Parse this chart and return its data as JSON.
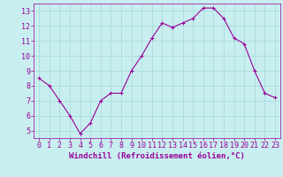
{
  "x": [
    0,
    1,
    2,
    3,
    4,
    5,
    6,
    7,
    8,
    9,
    10,
    11,
    12,
    13,
    14,
    15,
    16,
    17,
    18,
    19,
    20,
    21,
    22,
    23
  ],
  "y": [
    8.5,
    8.0,
    7.0,
    6.0,
    4.8,
    5.5,
    7.0,
    7.5,
    7.5,
    9.0,
    10.0,
    11.2,
    12.2,
    11.9,
    12.2,
    12.5,
    13.2,
    13.2,
    12.5,
    11.2,
    10.8,
    9.0,
    7.5,
    7.2
  ],
  "line_color": "#990099",
  "marker": "+",
  "marker_size": 3,
  "marker_lw": 0.8,
  "line_width": 0.8,
  "bg_color": "#c8eef0",
  "grid_color": "#aadddd",
  "xlabel": "Windchill (Refroidissement éolien,°C)",
  "xlabel_color": "#990099",
  "tick_color": "#990099",
  "xlim": [
    -0.5,
    23.5
  ],
  "ylim": [
    4.5,
    13.5
  ],
  "yticks": [
    5,
    6,
    7,
    8,
    9,
    10,
    11,
    12,
    13
  ],
  "xticks": [
    0,
    1,
    2,
    3,
    4,
    5,
    6,
    7,
    8,
    9,
    10,
    11,
    12,
    13,
    14,
    15,
    16,
    17,
    18,
    19,
    20,
    21,
    22,
    23
  ],
  "label_fontsize": 6.5,
  "tick_fontsize": 6.0
}
